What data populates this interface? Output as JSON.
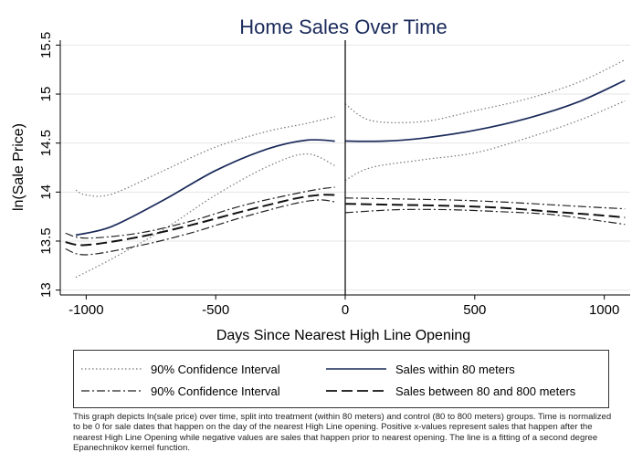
{
  "chart_data": {
    "type": "line",
    "title": "Home Sales Over Time",
    "xlabel": "Days Since Nearest High Line Opening",
    "ylabel": "ln(Sale Price)",
    "xlim": [
      -1100,
      1100
    ],
    "ylim": [
      12.95,
      15.55
    ],
    "x_ticks": [
      -1000,
      -500,
      0,
      500,
      1000
    ],
    "x_tick_labels": [
      "-1000",
      "-500",
      "0",
      "500",
      "1000"
    ],
    "y_ticks": [
      13,
      13.5,
      14,
      14.5,
      15,
      15.5
    ],
    "y_tick_labels": [
      "13",
      "13.5",
      "14",
      "14.5",
      "15",
      "15.5"
    ],
    "grid": "horizontal",
    "vertical_line_at": 0,
    "legend_position": "bottom",
    "series": [
      {
        "name": "Sales within 80 meters",
        "style": "solid",
        "color": "#1a2a5a",
        "segments": [
          {
            "x": [
              -1040,
              -900,
              -700,
              -500,
              -300,
              -150,
              -40
            ],
            "y": [
              13.56,
              13.65,
              13.92,
              14.22,
              14.44,
              14.53,
              14.52
            ]
          },
          {
            "x": [
              0,
              150,
              300,
              500,
              700,
              900,
              1080
            ],
            "y": [
              14.52,
              14.52,
              14.55,
              14.63,
              14.75,
              14.92,
              15.14
            ]
          }
        ]
      },
      {
        "name": "90% Confidence Interval",
        "style": "dotted",
        "color": "#777777",
        "segments": [
          {
            "x": [
              -1040,
              -1000,
              -900,
              -700,
              -500,
              -300,
              -150,
              -40
            ],
            "y": [
              14.02,
              13.97,
              13.98,
              14.22,
              14.46,
              14.62,
              14.7,
              14.77
            ]
          },
          {
            "x": [
              -1040,
              -900,
              -700,
              -500,
              -300,
              -150,
              -40
            ],
            "y": [
              13.13,
              13.32,
              13.62,
              13.97,
              14.26,
              14.39,
              14.27
            ]
          },
          {
            "x": [
              0,
              100,
              300,
              500,
              700,
              900,
              1080
            ],
            "y": [
              14.9,
              14.73,
              14.72,
              14.83,
              14.95,
              15.12,
              15.35
            ]
          },
          {
            "x": [
              0,
              100,
              300,
              500,
              700,
              900,
              1080
            ],
            "y": [
              14.12,
              14.25,
              14.33,
              14.4,
              14.55,
              14.73,
              14.93
            ]
          }
        ]
      },
      {
        "name": "Sales between 80 and 800 meters",
        "style": "dashed",
        "color": "#111111",
        "segments": [
          {
            "x": [
              -1080,
              -1000,
              -800,
              -600,
              -400,
              -200,
              -100,
              -40
            ],
            "y": [
              13.49,
              13.46,
              13.54,
              13.66,
              13.8,
              13.93,
              13.97,
              13.97
            ]
          },
          {
            "x": [
              0,
              200,
              400,
              600,
              800,
              1000,
              1080
            ],
            "y": [
              13.88,
              13.87,
              13.86,
              13.84,
              13.8,
              13.76,
              13.74
            ]
          }
        ]
      },
      {
        "name": "90% Confidence Interval",
        "style": "dashdot",
        "color": "#222222",
        "segments": [
          {
            "x": [
              -1080,
              -1000,
              -800,
              -600,
              -400,
              -200,
              -100,
              -40
            ],
            "y": [
              13.58,
              13.53,
              13.58,
              13.7,
              13.86,
              13.98,
              14.03,
              14.05
            ]
          },
          {
            "x": [
              -1080,
              -1000,
              -800,
              -600,
              -400,
              -200,
              -100,
              -40
            ],
            "y": [
              13.42,
              13.36,
              13.45,
              13.58,
              13.74,
              13.88,
              13.92,
              13.9
            ]
          },
          {
            "x": [
              0,
              200,
              400,
              600,
              800,
              1000,
              1080
            ],
            "y": [
              13.94,
              13.93,
              13.92,
              13.9,
              13.87,
              13.84,
              13.83
            ]
          },
          {
            "x": [
              0,
              200,
              400,
              600,
              800,
              1000,
              1080
            ],
            "y": [
              13.79,
              13.82,
              13.82,
              13.8,
              13.77,
              13.7,
              13.67
            ]
          }
        ]
      }
    ]
  },
  "legend": {
    "items": [
      {
        "label": "90% Confidence Interval",
        "style": "dotted"
      },
      {
        "label": "Sales within 80 meters",
        "style": "solid"
      },
      {
        "label": "90% Confidence Interval",
        "style": "dashdot"
      },
      {
        "label": "Sales between 80 and 800 meters",
        "style": "dashed"
      }
    ]
  },
  "caption": "This graph depicts ln(sale price) over time, split into treatment (within 80 meters) and control (80 to 800 meters) groups. Time is normalized to be 0 for sale dates that happen on the day of the nearest High Line opening. Positive x-values represent sales that happen after the nearest High Line Opening while negative values are sales that happen prior to nearest opening. The line is a fitting of a second degree Epanechnikov kernel function."
}
